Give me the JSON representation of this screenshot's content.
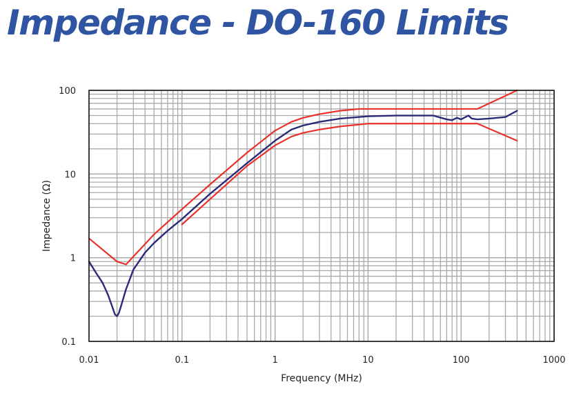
{
  "title": "Impedance - DO-160 Limits",
  "chart_data": {
    "type": "line",
    "title": "Impedance - DO-160 Limits",
    "xlabel": "Frequency (MHz)",
    "ylabel": "Impedance (Ω)",
    "x_scale": "log",
    "y_scale": "log",
    "xlim": [
      0.01,
      1000
    ],
    "ylim": [
      0.1,
      100
    ],
    "x_ticks": [
      "0.01",
      "0.1",
      "1",
      "10",
      "100",
      "1000"
    ],
    "y_ticks": [
      "0.1",
      "1",
      "10",
      "100"
    ],
    "grid": true,
    "colors": {
      "measured": "#2b2a78",
      "limits": "#e8312a",
      "grid": "#a9a9a9"
    },
    "series": [
      {
        "role": "upper-limit",
        "x": [
          0.01,
          0.02,
          0.025,
          0.05,
          0.1,
          0.2,
          0.5,
          1,
          1.5,
          2,
          3,
          5,
          8,
          10,
          20,
          50,
          100,
          150,
          400
        ],
        "y": [
          1.7,
          0.9,
          0.83,
          1.9,
          3.8,
          7.5,
          18,
          33,
          42,
          47,
          52,
          57,
          60,
          60,
          60,
          60,
          60,
          60,
          100
        ]
      },
      {
        "role": "lower-limit",
        "x": [
          0.1,
          0.2,
          0.5,
          1,
          1.5,
          2,
          3,
          5,
          10,
          20,
          50,
          100,
          150,
          400
        ],
        "y": [
          2.5,
          5,
          12.5,
          22,
          28,
          31,
          34,
          37,
          40,
          40,
          40,
          40,
          40,
          25
        ]
      },
      {
        "role": "measured",
        "x": [
          0.01,
          0.012,
          0.014,
          0.016,
          0.018,
          0.019,
          0.02,
          0.021,
          0.022,
          0.025,
          0.03,
          0.04,
          0.05,
          0.07,
          0.1,
          0.2,
          0.5,
          1,
          1.5,
          2,
          3,
          5,
          8,
          10,
          20,
          50,
          70,
          80,
          90,
          100,
          120,
          130,
          150,
          200,
          300,
          400
        ],
        "y": [
          0.9,
          0.65,
          0.5,
          0.36,
          0.25,
          0.21,
          0.2,
          0.22,
          0.26,
          0.42,
          0.72,
          1.15,
          1.5,
          2.1,
          2.9,
          5.8,
          13.5,
          25,
          34,
          38,
          42,
          46,
          48,
          49,
          50,
          50,
          45,
          44,
          47,
          45,
          50,
          46,
          45,
          46,
          48,
          57
        ]
      }
    ]
  }
}
